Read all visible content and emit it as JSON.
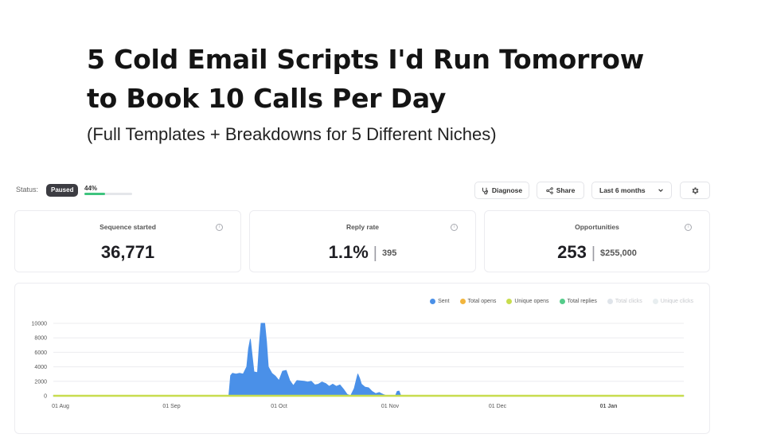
{
  "headline": {
    "line1": "5 Cold Email Scripts I'd Run Tomorrow",
    "line2": "to Book 10 Calls Per Day",
    "subtitle": "(Full Templates + Breakdowns for 5 Different Niches)"
  },
  "status": {
    "label": "Status:",
    "badge": "Paused",
    "progress_text": "44%",
    "progress_value": 0.44
  },
  "toolbar": {
    "diagnose_label": "Diagnose",
    "share_label": "Share",
    "range_label": "Last 6 months"
  },
  "stats": [
    {
      "label": "Sequence started",
      "value": "36,771",
      "secondary": ""
    },
    {
      "label": "Reply rate",
      "value": "1.1%",
      "secondary": "395"
    },
    {
      "label": "Opportunities",
      "value": "253",
      "secondary": "$255,000"
    }
  ],
  "colors": {
    "sent": "#4a90e8",
    "total_opens": "#f2b53d",
    "unique_opens": "#c8dd4e",
    "total_replies": "#55cc8a",
    "total_clicks": "#dfe4ea",
    "unique_clicks": "#e8eef0"
  },
  "chart_data": {
    "type": "area",
    "legend": [
      {
        "name": "Sent",
        "color": "#4a90e8",
        "faded": false
      },
      {
        "name": "Total opens",
        "color": "#f2b53d",
        "faded": false
      },
      {
        "name": "Unique opens",
        "color": "#c8dd4e",
        "faded": false
      },
      {
        "name": "Total replies",
        "color": "#55cc8a",
        "faded": false
      },
      {
        "name": "Total clicks",
        "color": "#dfe4ea",
        "faded": true
      },
      {
        "name": "Unique clicks",
        "color": "#e8eef0",
        "faded": true
      }
    ],
    "yticks": [
      0,
      2000,
      4000,
      6000,
      8000,
      10000
    ],
    "ylim": [
      0,
      10000
    ],
    "xticks": [
      "01 Aug",
      "01 Sep",
      "01 Oct",
      "01 Nov",
      "01 Dec",
      "01 Jan"
    ],
    "xtick_days": [
      0,
      31,
      61,
      92,
      122,
      153
    ],
    "xlim_days": [
      -2,
      174
    ],
    "series": [
      {
        "name": "Sent",
        "points": [
          [
            -2,
            0
          ],
          [
            47,
            0
          ],
          [
            47.5,
            2800
          ],
          [
            48,
            3100
          ],
          [
            49,
            3000
          ],
          [
            50,
            3100
          ],
          [
            51,
            3000
          ],
          [
            52,
            4000
          ],
          [
            52.5,
            6500
          ],
          [
            53,
            7800
          ],
          [
            53.5,
            5500
          ],
          [
            54,
            3300
          ],
          [
            55,
            3200
          ],
          [
            55.5,
            7000
          ],
          [
            56,
            10000
          ],
          [
            57,
            10000
          ],
          [
            57.5,
            7500
          ],
          [
            58,
            4000
          ],
          [
            59,
            3100
          ],
          [
            60,
            2700
          ],
          [
            61,
            2100
          ],
          [
            62,
            3400
          ],
          [
            63,
            3500
          ],
          [
            64,
            2100
          ],
          [
            65,
            1400
          ],
          [
            66,
            2100
          ],
          [
            68,
            2000
          ],
          [
            69,
            1900
          ],
          [
            70,
            2000
          ],
          [
            71,
            1500
          ],
          [
            72,
            1600
          ],
          [
            73,
            1900
          ],
          [
            74,
            1700
          ],
          [
            75,
            1300
          ],
          [
            76,
            1600
          ],
          [
            77,
            1300
          ],
          [
            78,
            1500
          ],
          [
            79,
            900
          ],
          [
            80,
            200
          ],
          [
            81,
            0
          ],
          [
            82,
            1000
          ],
          [
            82.5,
            2000
          ],
          [
            83,
            3000
          ],
          [
            83.5,
            2400
          ],
          [
            84,
            1600
          ],
          [
            85,
            1200
          ],
          [
            86,
            1100
          ],
          [
            87,
            600
          ],
          [
            88,
            300
          ],
          [
            89,
            450
          ],
          [
            90,
            200
          ],
          [
            91,
            0
          ],
          [
            93.5,
            0
          ],
          [
            94,
            600
          ],
          [
            94.5,
            650
          ],
          [
            95,
            0
          ],
          [
            174,
            0
          ]
        ]
      },
      {
        "name": "Unique opens",
        "points": [
          [
            -2,
            0
          ],
          [
            174,
            0
          ]
        ]
      }
    ]
  }
}
